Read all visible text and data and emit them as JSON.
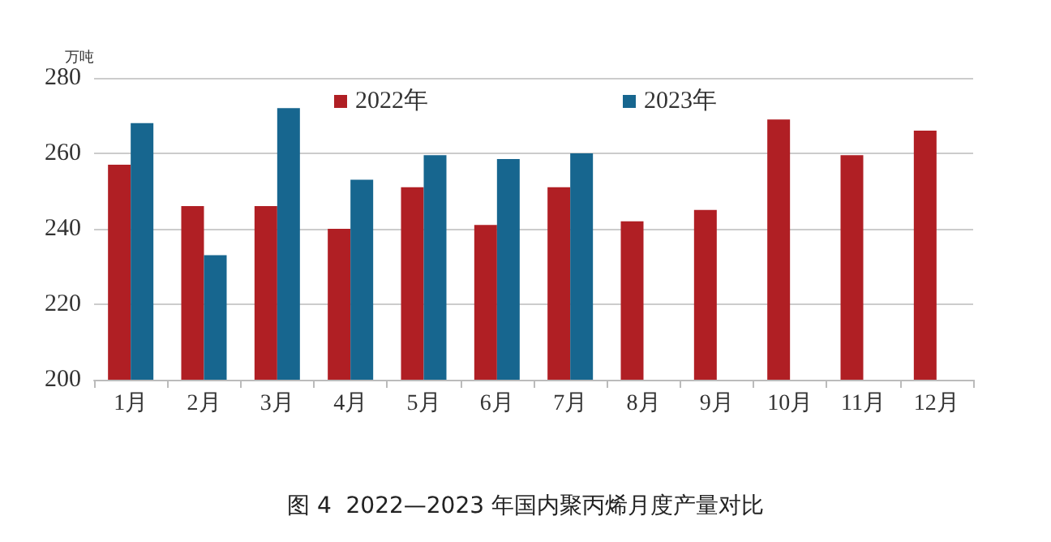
{
  "chart_data": {
    "type": "bar",
    "title": "图 4  2022—2023 年国内聚丙烯月度产量对比",
    "ylabel": "万吨",
    "categories": [
      "1月",
      "2月",
      "3月",
      "4月",
      "5月",
      "6月",
      "7月",
      "8月",
      "9月",
      "10月",
      "11月",
      "12月"
    ],
    "series": [
      {
        "name": "2022年",
        "color": "#b01f24",
        "values": [
          257,
          246,
          246,
          240,
          251,
          241,
          251,
          242,
          245,
          269,
          259.5,
          266
        ]
      },
      {
        "name": "2023年",
        "color": "#17668f",
        "values": [
          268,
          233,
          272,
          253,
          259.5,
          258.5,
          260,
          null,
          null,
          null,
          null,
          null
        ]
      }
    ],
    "ylim": [
      200,
      280
    ],
    "yticks": [
      200,
      220,
      240,
      260,
      280
    ],
    "grid": "y",
    "legend": "top"
  }
}
